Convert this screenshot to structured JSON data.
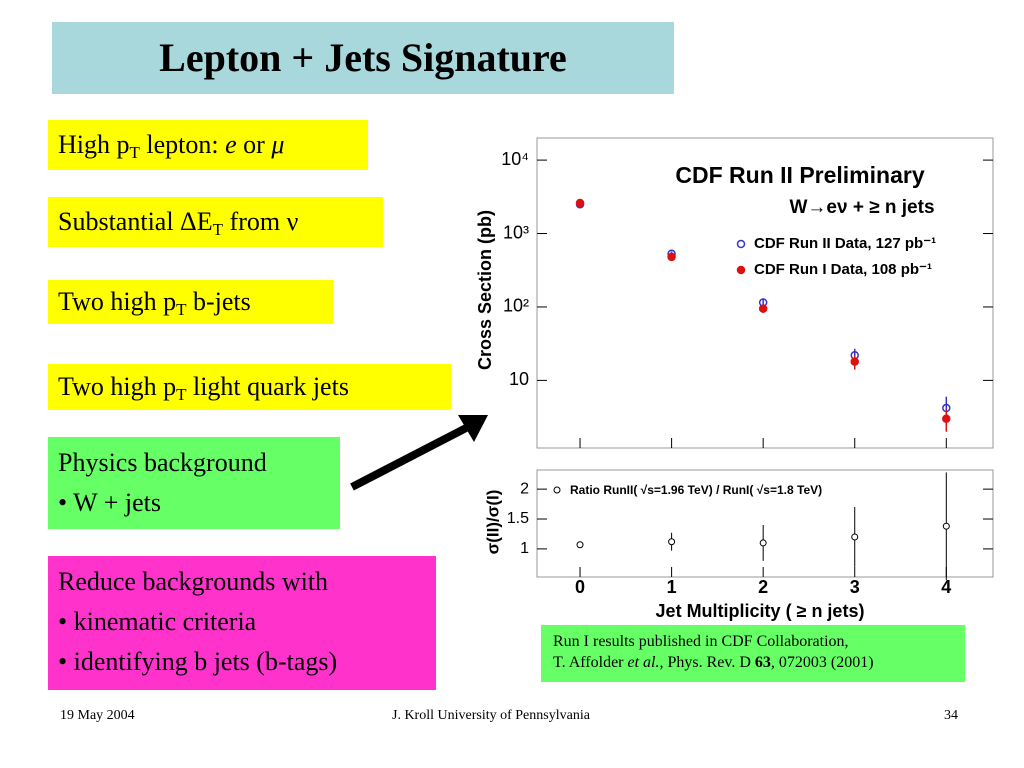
{
  "title": "Lepton + Jets Signature",
  "boxes": [
    {
      "parts": [
        "High p",
        "T",
        " lepton: ",
        "e",
        " or ",
        "μ"
      ]
    },
    {
      "parts": [
        "Substantial ΔE",
        "T",
        " from ν"
      ]
    },
    {
      "parts": [
        "Two high p",
        "T",
        " b-jets"
      ]
    },
    {
      "parts": [
        "Two high p",
        "T",
        " light quark jets"
      ]
    },
    {
      "lines": [
        "Physics background",
        "• W + jets"
      ]
    },
    {
      "lines": [
        "Reduce backgrounds with",
        "• kinematic criteria",
        "• identifying b jets (b-tags)"
      ]
    }
  ],
  "citation": {
    "line1": "Run I results published in CDF Collaboration,",
    "line2": [
      "T. Affolder ",
      "et al.,",
      " Phys. Rev. D ",
      "63",
      ", 072003 (2001)"
    ]
  },
  "plot": {
    "type": "scatter",
    "title": "CDF Run II Preliminary",
    "subtitle": "W→eν + ≥ n jets",
    "ylabel": "Cross Section (pb)",
    "log_y": true,
    "x": [
      0,
      1,
      2,
      3,
      4
    ],
    "xlim": [
      -0.47,
      4.51
    ],
    "xticks": [
      0,
      1,
      2,
      3,
      4
    ],
    "xlabel": "Jet Multiplicity (  ≥ n jets)",
    "ylim": [
      1.2,
      20000
    ],
    "yticks": [
      10,
      {
        "value": 100,
        "label": "10²"
      },
      {
        "value": 1000,
        "label": "10³"
      },
      {
        "value": 10000,
        "label": "10⁴"
      }
    ],
    "series": [
      {
        "name": "CDF Run II Data, 127 pb⁻¹",
        "color": "#3333cc",
        "values": [
          2500,
          530,
          115,
          22,
          4.2
        ],
        "errors": [
          150,
          40,
          15,
          5,
          1.8
        ]
      },
      {
        "name": "CDF Run I Data, 108 pb⁻¹",
        "color": "#dd1111",
        "values": [
          2600,
          480,
          95,
          18,
          3.0
        ],
        "errors": [
          150,
          40,
          12,
          4,
          1.0
        ]
      }
    ],
    "ratio": {
      "label": "σ(II)/σ(I)",
      "legend": "Ratio RunII( √s=1.96 TeV) / RunI( √s=1.8 TeV)",
      "ylim": [
        0.53,
        2.32
      ],
      "yticks": [
        1,
        1.5,
        2
      ],
      "values": [
        1.07,
        1.12,
        1.1,
        1.2,
        1.38
      ],
      "errors": [
        0.05,
        0.15,
        0.3,
        0.5,
        0.9
      ]
    }
  },
  "footer": {
    "date": "19 May 2004",
    "author": "J. Kroll University of Pennsylvania",
    "page": "34"
  }
}
